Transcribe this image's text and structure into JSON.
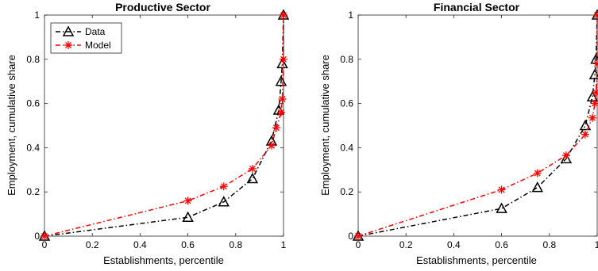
{
  "chart_data": [
    {
      "type": "line",
      "title": "Productive Sector",
      "xlabel": "Establishments, percentile",
      "ylabel": "Employment, cumulative share",
      "xlim": [
        0,
        1
      ],
      "ylim": [
        0,
        1
      ],
      "xticks": [
        "0",
        "0.2",
        "0.4",
        "0.6",
        "0.8",
        "1"
      ],
      "yticks": [
        "0",
        "0.2",
        "0.4",
        "0.6",
        "0.8",
        "1"
      ],
      "grid": false,
      "legend": {
        "placement": "top-left",
        "entries": [
          "Data",
          "Model"
        ]
      },
      "series": [
        {
          "name": "Data",
          "color": "#000000",
          "marker": "triangle",
          "line": "dash-dot",
          "points": [
            [
              0,
              0
            ],
            [
              0.6,
              0.085
            ],
            [
              0.75,
              0.155
            ],
            [
              0.87,
              0.26
            ],
            [
              0.95,
              0.43
            ],
            [
              0.98,
              0.57
            ],
            [
              0.99,
              0.7
            ],
            [
              0.995,
              0.78
            ],
            [
              1.0,
              1.0
            ]
          ]
        },
        {
          "name": "Model",
          "color": "#ff0000",
          "marker": "asterisk",
          "line": "dash-dot",
          "points": [
            [
              0,
              0
            ],
            [
              0.6,
              0.16
            ],
            [
              0.75,
              0.225
            ],
            [
              0.87,
              0.305
            ],
            [
              0.95,
              0.41
            ],
            [
              0.97,
              0.49
            ],
            [
              0.99,
              0.56
            ],
            [
              0.995,
              0.62
            ],
            [
              1.0,
              0.8
            ],
            [
              1.0,
              1.0
            ]
          ]
        }
      ]
    },
    {
      "type": "line",
      "title": "Financial Sector",
      "xlabel": "Establishments, percentile",
      "ylabel": "Employment, cumulative share",
      "xlim": [
        0,
        1
      ],
      "ylim": [
        0,
        1
      ],
      "xticks": [
        "0",
        "0.2",
        "0.4",
        "0.6",
        "0.8",
        "1"
      ],
      "yticks": [
        "0",
        "0.2",
        "0.4",
        "0.6",
        "0.8",
        "1"
      ],
      "grid": false,
      "series": [
        {
          "name": "Data",
          "color": "#000000",
          "marker": "triangle",
          "line": "dash-dot",
          "points": [
            [
              0,
              0
            ],
            [
              0.6,
              0.125
            ],
            [
              0.75,
              0.22
            ],
            [
              0.87,
              0.35
            ],
            [
              0.95,
              0.5
            ],
            [
              0.98,
              0.63
            ],
            [
              0.99,
              0.73
            ],
            [
              0.995,
              0.8
            ],
            [
              1.0,
              1.0
            ]
          ]
        },
        {
          "name": "Model",
          "color": "#ff0000",
          "marker": "asterisk",
          "line": "dash-dot",
          "points": [
            [
              0,
              0
            ],
            [
              0.6,
              0.21
            ],
            [
              0.75,
              0.285
            ],
            [
              0.87,
              0.365
            ],
            [
              0.95,
              0.46
            ],
            [
              0.98,
              0.535
            ],
            [
              0.99,
              0.6
            ],
            [
              0.995,
              0.65
            ],
            [
              1.0,
              0.78
            ],
            [
              1.0,
              1.0
            ]
          ]
        }
      ]
    }
  ]
}
